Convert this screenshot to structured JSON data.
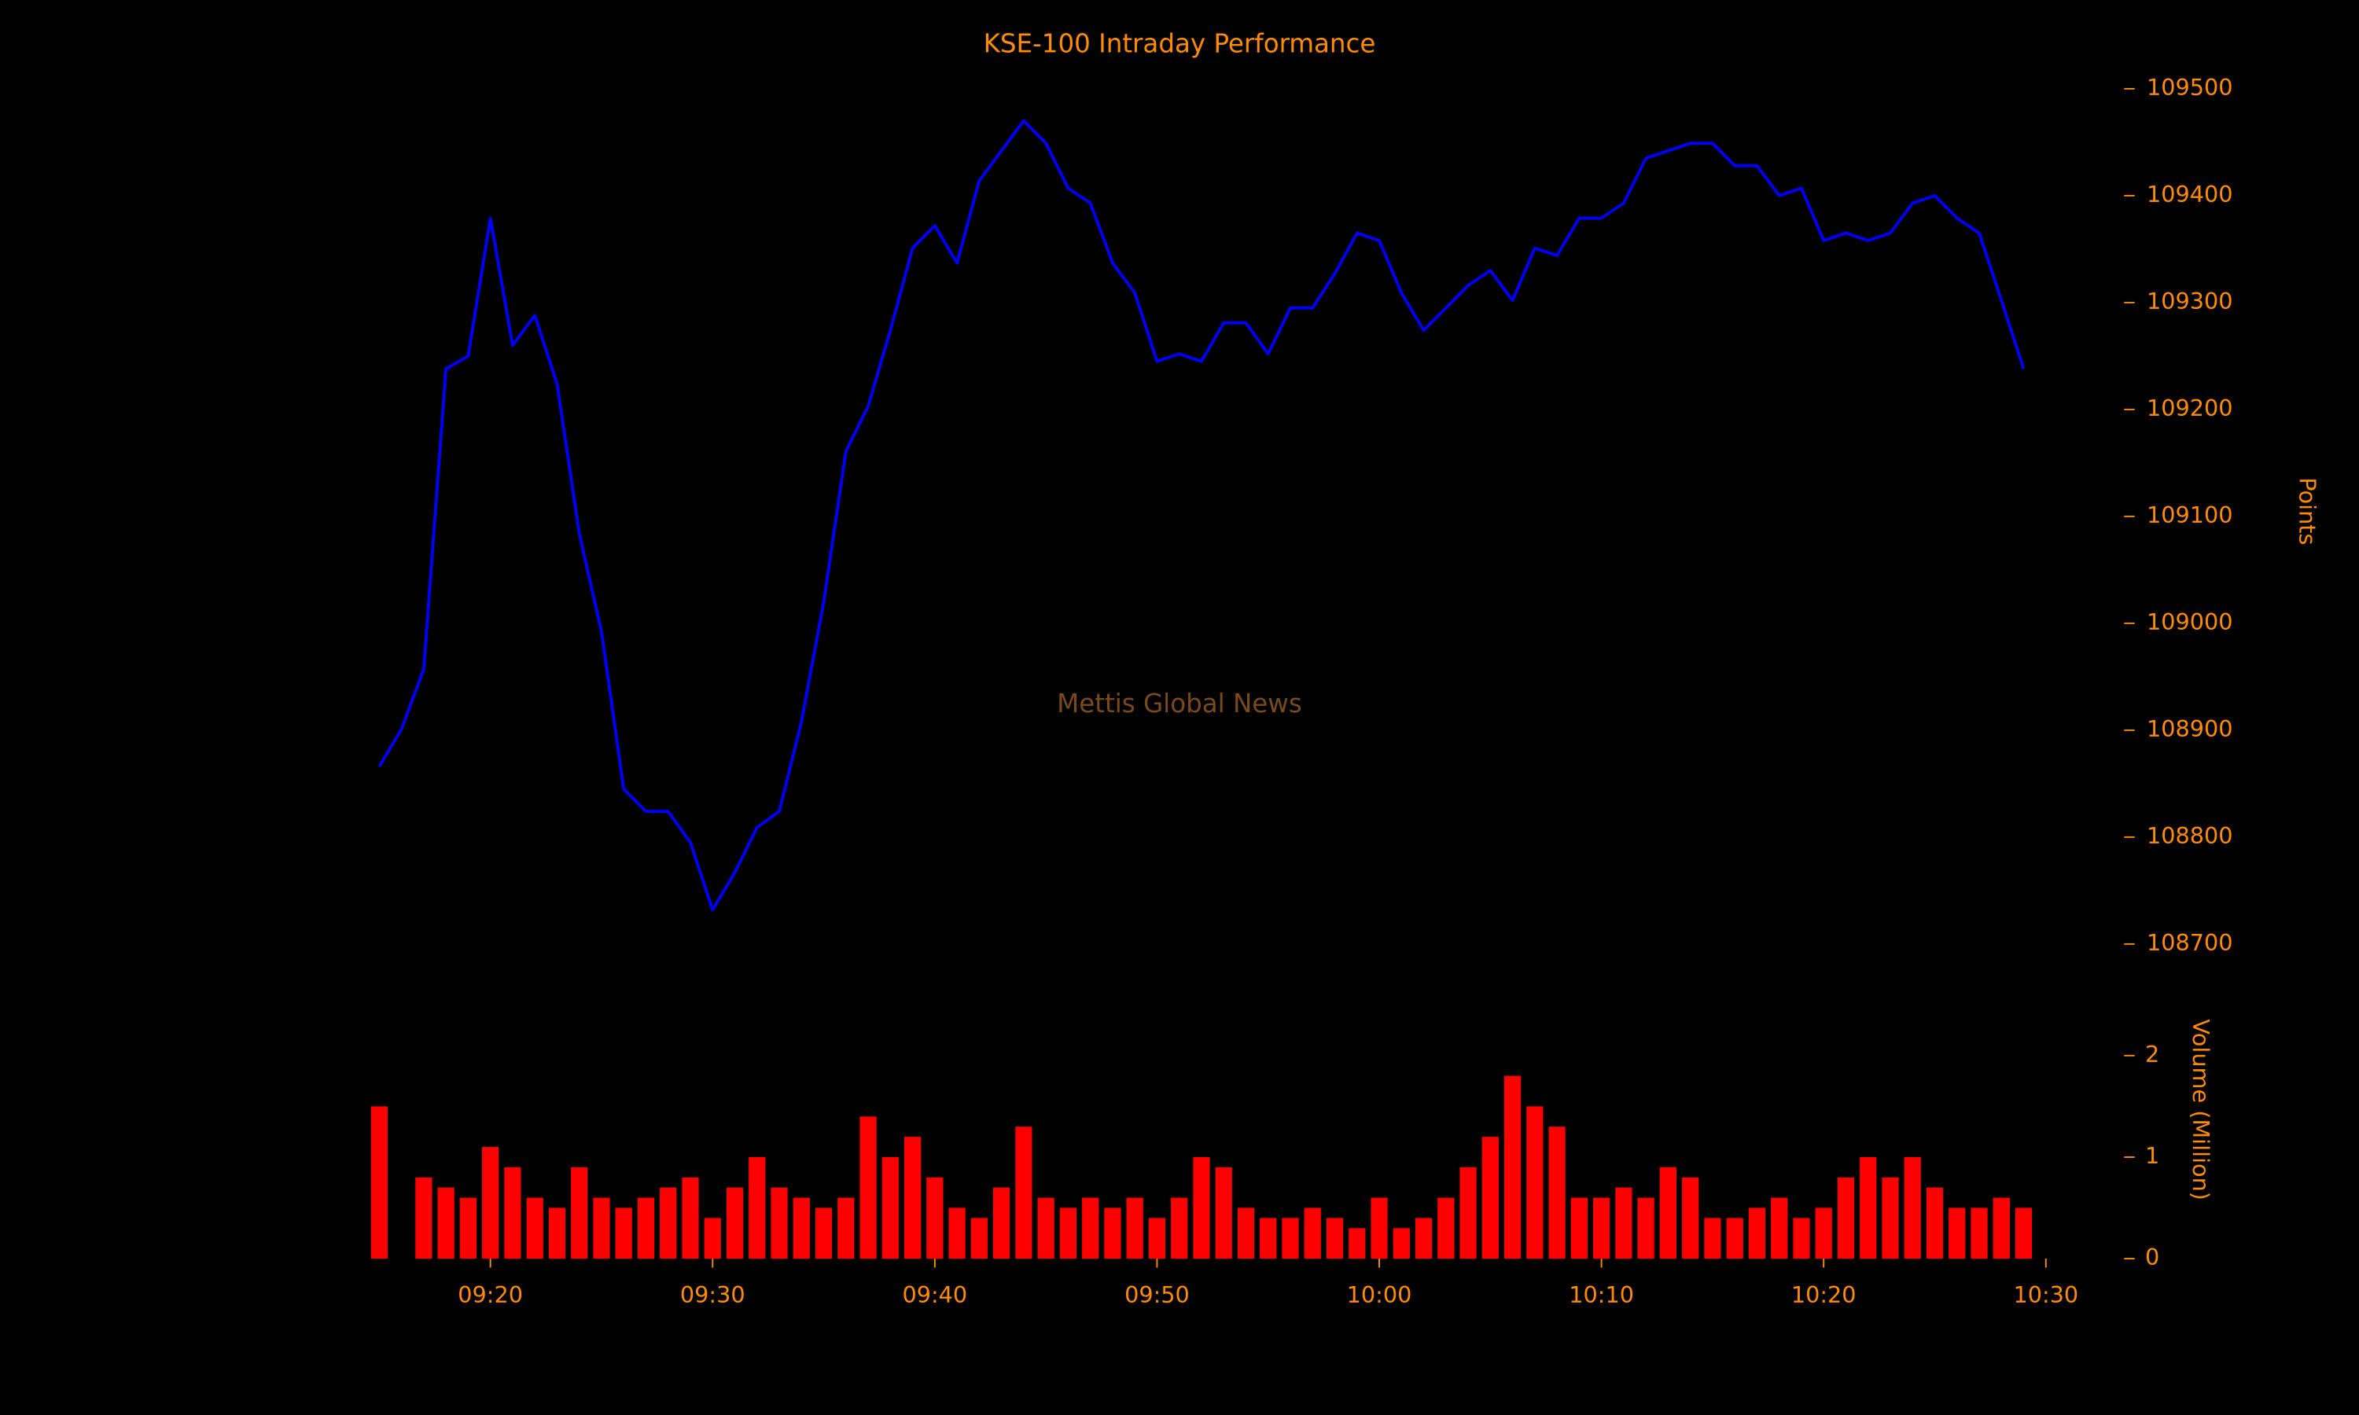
{
  "chart_data": [
    {
      "type": "line",
      "title": "KSE-100 Intraday Performance",
      "annotation": "Mettis Global News",
      "ylabel": "Points",
      "color": "#0000ff",
      "x": [
        "09:15",
        "09:16",
        "09:17",
        "09:18",
        "09:19",
        "09:20",
        "09:21",
        "09:22",
        "09:23",
        "09:24",
        "09:25",
        "09:26",
        "09:27",
        "09:28",
        "09:29",
        "09:30",
        "09:31",
        "09:32",
        "09:33",
        "09:34",
        "09:35",
        "09:36",
        "09:37",
        "09:38",
        "09:39",
        "09:40",
        "09:41",
        "09:42",
        "09:43",
        "09:44",
        "09:45",
        "09:46",
        "09:47",
        "09:48",
        "09:49",
        "09:50",
        "09:51",
        "09:52",
        "09:53",
        "09:54",
        "09:55",
        "09:56",
        "09:57",
        "09:58",
        "09:59",
        "10:00",
        "10:01",
        "10:02",
        "10:03",
        "10:04",
        "10:05",
        "10:06",
        "10:07",
        "10:08",
        "10:09",
        "10:10",
        "10:11",
        "10:12",
        "10:13",
        "10:14",
        "10:15",
        "10:16",
        "10:17",
        "10:18",
        "10:19",
        "10:20",
        "10:21",
        "10:22",
        "10:23",
        "10:24",
        "10:25",
        "10:26",
        "10:27",
        "10:28",
        "10:29"
      ],
      "values": [
        108866,
        108901,
        108957,
        109238,
        109250,
        109379,
        109260,
        109288,
        109224,
        109084,
        108992,
        108845,
        108824,
        108824,
        108795,
        108732,
        108767,
        108809,
        108824,
        108908,
        109020,
        109161,
        109203,
        109274,
        109351,
        109372,
        109337,
        109414,
        109442,
        109470,
        109449,
        109407,
        109393,
        109337,
        109309,
        109245,
        109252,
        109245,
        109281,
        109281,
        109252,
        109295,
        109295,
        109327,
        109365,
        109358,
        109309,
        109274,
        109295,
        109316,
        109330,
        109302,
        109351,
        109344,
        109379,
        109379,
        109393,
        109435,
        109442,
        109449,
        109449,
        109428,
        109428,
        109400,
        109407,
        109358,
        109365,
        109358,
        109365,
        109393,
        109400,
        109379,
        109365,
        109302,
        109238
      ],
      "xlim": [
        "09:15",
        "10:30"
      ],
      "ylim": [
        108680,
        109520
      ],
      "yticks": [
        108700,
        108800,
        108900,
        109000,
        109100,
        109200,
        109300,
        109400,
        109500
      ]
    },
    {
      "type": "bar",
      "ylabel": "Volume (Million)",
      "color": "#ff0000",
      "x": [
        "09:15",
        "09:16",
        "09:17",
        "09:18",
        "09:19",
        "09:20",
        "09:21",
        "09:22",
        "09:23",
        "09:24",
        "09:25",
        "09:26",
        "09:27",
        "09:28",
        "09:29",
        "09:30",
        "09:31",
        "09:32",
        "09:33",
        "09:34",
        "09:35",
        "09:36",
        "09:37",
        "09:38",
        "09:39",
        "09:40",
        "09:41",
        "09:42",
        "09:43",
        "09:44",
        "09:45",
        "09:46",
        "09:47",
        "09:48",
        "09:49",
        "09:50",
        "09:51",
        "09:52",
        "09:53",
        "09:54",
        "09:55",
        "09:56",
        "09:57",
        "09:58",
        "09:59",
        "10:00",
        "10:01",
        "10:02",
        "10:03",
        "10:04",
        "10:05",
        "10:06",
        "10:07",
        "10:08",
        "10:09",
        "10:10",
        "10:11",
        "10:12",
        "10:13",
        "10:14",
        "10:15",
        "10:16",
        "10:17",
        "10:18",
        "10:19",
        "10:20",
        "10:21",
        "10:22",
        "10:23",
        "10:24",
        "10:25",
        "10:26",
        "10:27",
        "10:28",
        "10:29"
      ],
      "values": [
        1.5,
        null,
        0.8,
        0.7,
        0.6,
        1.1,
        0.9,
        0.6,
        0.5,
        0.9,
        0.6,
        0.5,
        0.6,
        0.7,
        0.8,
        0.4,
        0.7,
        1.0,
        0.7,
        0.6,
        0.5,
        0.6,
        1.4,
        1.0,
        1.2,
        0.8,
        0.5,
        0.4,
        0.7,
        1.3,
        0.6,
        0.5,
        0.6,
        0.5,
        0.6,
        0.4,
        0.6,
        1.0,
        0.9,
        0.5,
        0.4,
        0.4,
        0.5,
        0.4,
        0.3,
        0.6,
        0.3,
        0.4,
        0.6,
        0.9,
        1.2,
        1.8,
        1.5,
        1.3,
        0.6,
        0.6,
        0.7,
        0.6,
        0.9,
        0.8,
        0.4,
        0.4,
        0.5,
        0.6,
        0.4,
        0.5,
        0.8,
        1.0,
        0.8,
        1.0,
        0.7,
        0.5,
        0.5,
        0.6,
        0.5
      ],
      "xlim": [
        "09:15",
        "10:30"
      ],
      "xticks": [
        "09:20",
        "09:30",
        "09:40",
        "09:50",
        "10:00",
        "10:10",
        "10:20",
        "10:30"
      ],
      "ylim": [
        0,
        2.8
      ],
      "yticks": [
        0,
        1,
        2
      ]
    }
  ]
}
